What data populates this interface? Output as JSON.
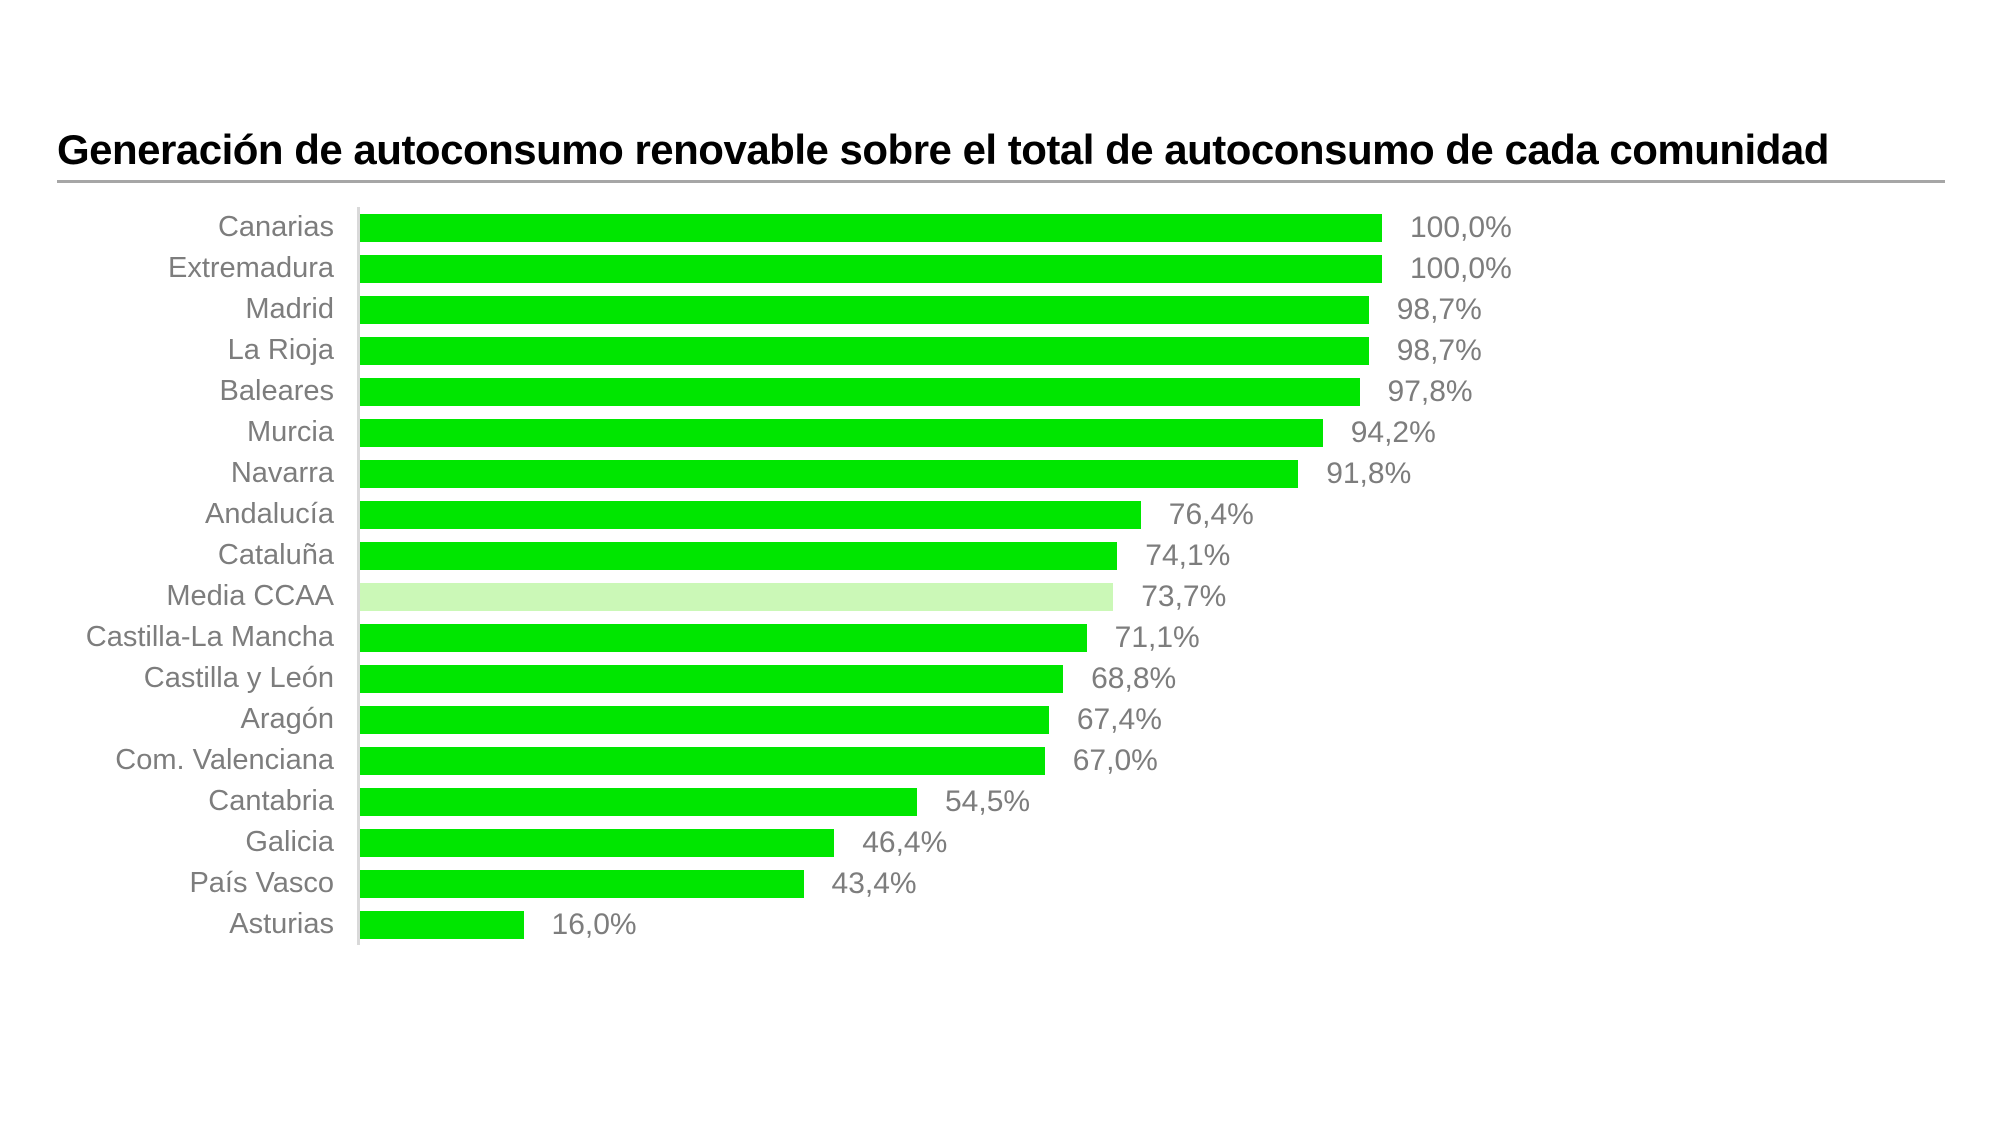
{
  "title": "Generación de autoconsumo renovable sobre el total de autoconsumo de cada comunidad",
  "colors": {
    "background": "#ffffff",
    "title_text": "#000000",
    "title_rule": "#a6a6a6",
    "axis_line": "#d9d9d9",
    "label_text": "#7d7d7d",
    "bar": "#00e600",
    "bar_highlight": "#cbf8b7"
  },
  "chart_data": {
    "type": "bar",
    "orientation": "horizontal",
    "title": "Generación de autoconsumo renovable sobre el total de autoconsumo de cada comunidad",
    "xlabel": "",
    "ylabel": "",
    "xlim": [
      0,
      100
    ],
    "grid": false,
    "legend": false,
    "value_label_format": "percent with comma decimal, 1 decimal",
    "categories": [
      "Canarias",
      "Extremadura",
      "Madrid",
      "La Rioja",
      "Baleares",
      "Murcia",
      "Navarra",
      "Andalucía",
      "Cataluña",
      "Media CCAA",
      "Castilla-La Mancha",
      "Castilla y León",
      "Aragón",
      "Com. Valenciana",
      "Cantabria",
      "Galicia",
      "País Vasco",
      "Asturias"
    ],
    "values": [
      100.0,
      100.0,
      98.7,
      98.7,
      97.8,
      94.2,
      91.8,
      76.4,
      74.1,
      73.7,
      71.1,
      68.8,
      67.4,
      67.0,
      54.5,
      46.4,
      43.4,
      16.0
    ],
    "value_labels": [
      "100,0%",
      "100,0%",
      "98,7%",
      "98,7%",
      "97,8%",
      "94,2%",
      "91,8%",
      "76,4%",
      "74,1%",
      "73,7%",
      "71,1%",
      "68,8%",
      "67,4%",
      "67,0%",
      "54,5%",
      "46,4%",
      "43,4%",
      "16,0%"
    ],
    "highlight_category": "Media CCAA",
    "highlight_index": 9
  }
}
